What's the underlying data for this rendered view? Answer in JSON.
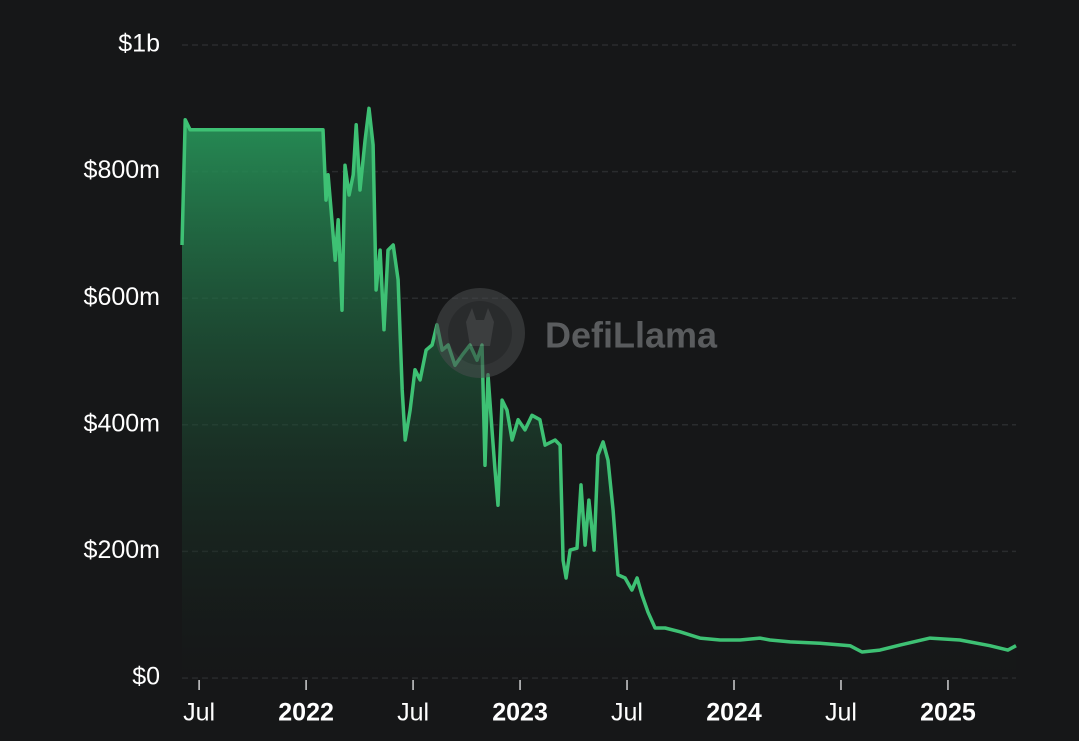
{
  "chart_data": {
    "type": "area",
    "color": "#3ec174",
    "watermark": "DefiLlama",
    "x": [
      2021.42,
      2021.435,
      2021.458,
      2022.079,
      2022.093,
      2022.103,
      2022.117,
      2022.136,
      2022.15,
      2022.168,
      2022.182,
      2022.201,
      2022.22,
      2022.234,
      2022.252,
      2022.276,
      2022.294,
      2022.313,
      2022.327,
      2022.346,
      2022.364,
      2022.383,
      2022.407,
      2022.43,
      2022.449,
      2022.463,
      2022.486,
      2022.509,
      2022.533,
      2022.561,
      2022.589,
      2022.612,
      2022.636,
      2022.664,
      2022.696,
      2022.729,
      2022.766,
      2022.799,
      2022.822,
      2022.836,
      2022.85,
      2022.869,
      2022.883,
      2022.897,
      2022.916,
      2022.939,
      2022.963,
      2022.991,
      2023.023,
      2023.056,
      2023.093,
      2023.117,
      2023.164,
      2023.187,
      2023.201,
      2023.215,
      2023.234,
      2023.266,
      2023.285,
      2023.304,
      2023.322,
      2023.346,
      2023.364,
      2023.388,
      2023.411,
      2023.435,
      2023.458,
      2023.491,
      2023.523,
      2023.547,
      2023.57,
      2023.598,
      2023.631,
      2023.678,
      2023.748,
      2023.841,
      2023.935,
      2024.028,
      2024.121,
      2024.168,
      2024.262,
      2024.402,
      2024.542,
      2024.598,
      2024.682,
      2024.776,
      2024.916,
      2025.056,
      2025.196,
      2025.28,
      2025.318
    ],
    "values": [
      684,
      882,
      866,
      866,
      755,
      795,
      739,
      660,
      724,
      581,
      810,
      763,
      795,
      874,
      771,
      850,
      900,
      842,
      613,
      676,
      550,
      676,
      684,
      629,
      455,
      376,
      423,
      487,
      471,
      518,
      526,
      558,
      518,
      526,
      494,
      510,
      526,
      502,
      526,
      336,
      479,
      392,
      329,
      273,
      439,
      423,
      376,
      408,
      392,
      415,
      408,
      368,
      376,
      368,
      186,
      158,
      202,
      205,
      305,
      210,
      281,
      202,
      352,
      373,
      344,
      265,
      163,
      158,
      139,
      158,
      131,
      104,
      79,
      79,
      73,
      63,
      60,
      60,
      63,
      60,
      57,
      55,
      51,
      41,
      44,
      52,
      63,
      60,
      51,
      44,
      51
    ],
    "xlim": [
      2021.42,
      2025.318
    ],
    "xticks": [
      {
        "value": 2021.5,
        "label": "Jul"
      },
      {
        "value": 2022,
        "label": "2022"
      },
      {
        "value": 2022.5,
        "label": "Jul"
      },
      {
        "value": 2023,
        "label": "2023"
      },
      {
        "value": 2023.5,
        "label": "Jul"
      },
      {
        "value": 2024,
        "label": "2024"
      },
      {
        "value": 2024.5,
        "label": "Jul"
      },
      {
        "value": 2025,
        "label": "2025"
      }
    ],
    "ylim": [
      0,
      1000
    ],
    "yticks": [
      {
        "value": 0,
        "label": "$0"
      },
      {
        "value": 200,
        "label": "$200m"
      },
      {
        "value": 400,
        "label": "$400m"
      },
      {
        "value": 600,
        "label": "$600m"
      },
      {
        "value": 800,
        "label": "$800m"
      },
      {
        "value": 1000,
        "label": "$1b"
      }
    ],
    "grid": true
  }
}
